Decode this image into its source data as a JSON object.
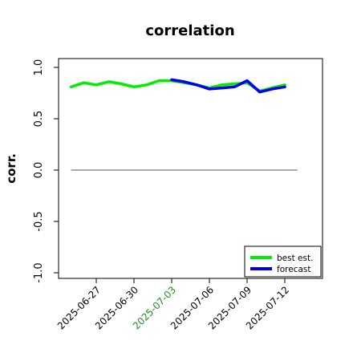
{
  "chart_data": {
    "type": "line",
    "title": "correlation",
    "ylabel": "corr.",
    "xlabel": "",
    "ylim": [
      -1.0,
      1.0
    ],
    "yticks": [
      -1.0,
      -0.5,
      0.0,
      0.5,
      1.0
    ],
    "ytick_labels": [
      "-1.0",
      "-0.5",
      "0.0",
      "0.5",
      "1.0"
    ],
    "xlim": [
      "2025-06-24",
      "2025-07-15"
    ],
    "xticks": [
      {
        "date": "2025-06-27",
        "label": "2025-06-27",
        "color": "#000000"
      },
      {
        "date": "2025-06-30",
        "label": "2025-06-30",
        "color": "#000000"
      },
      {
        "date": "2025-07-03",
        "label": "2025-07-03",
        "color": "#228B22"
      },
      {
        "date": "2025-07-06",
        "label": "2025-07-06",
        "color": "#000000"
      },
      {
        "date": "2025-07-09",
        "label": "2025-07-09",
        "color": "#000000"
      },
      {
        "date": "2025-07-12",
        "label": "2025-07-12",
        "color": "#000000"
      }
    ],
    "reference_line": {
      "y": 0.0,
      "from": "2025-06-25",
      "to": "2025-07-13",
      "color": "#555555"
    },
    "legend_position": "bottom-right",
    "series": [
      {
        "name": "best est.",
        "color": "#00ee00",
        "x": [
          "2025-06-25",
          "2025-06-26",
          "2025-06-27",
          "2025-06-28",
          "2025-06-29",
          "2025-06-30",
          "2025-07-01",
          "2025-07-02",
          "2025-07-03",
          "2025-07-04",
          "2025-07-05",
          "2025-07-06",
          "2025-07-07",
          "2025-07-08",
          "2025-07-09",
          "2025-07-10",
          "2025-07-11",
          "2025-07-12"
        ],
        "y": [
          0.81,
          0.85,
          0.83,
          0.86,
          0.84,
          0.81,
          0.83,
          0.87,
          0.87,
          0.85,
          0.83,
          0.8,
          0.83,
          0.84,
          0.85,
          0.77,
          0.8,
          0.83
        ]
      },
      {
        "name": "forecast",
        "color": "#0000ee",
        "x": [
          "2025-07-03",
          "2025-07-04",
          "2025-07-05",
          "2025-07-06",
          "2025-07-07",
          "2025-07-08",
          "2025-07-09",
          "2025-07-10",
          "2025-07-11",
          "2025-07-12"
        ],
        "y": [
          0.88,
          0.86,
          0.83,
          0.79,
          0.8,
          0.81,
          0.87,
          0.76,
          0.79,
          0.81
        ]
      }
    ]
  }
}
